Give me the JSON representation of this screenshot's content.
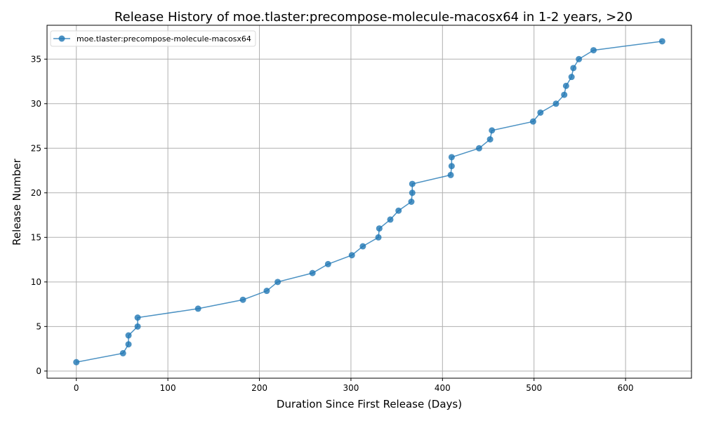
{
  "chart_data": {
    "type": "line",
    "title": "Release History of moe.tlaster:precompose-molecule-macosx64 in 1-2 years, >20",
    "xlabel": "Duration Since First Release (Days)",
    "ylabel": "Release Number",
    "xlim": [
      -32,
      672
    ],
    "ylim": [
      -0.8,
      38.8
    ],
    "xticks": [
      0,
      100,
      200,
      300,
      400,
      500,
      600
    ],
    "yticks": [
      0,
      5,
      10,
      15,
      20,
      25,
      30,
      35
    ],
    "grid": true,
    "legend_position": "top-left",
    "colors": {
      "series": "#1f77b4"
    },
    "series": [
      {
        "name": "moe.tlaster:precompose-molecule-macosx64",
        "marker": "circle",
        "x": [
          0,
          51,
          57,
          57,
          67,
          67,
          133,
          182,
          208,
          220,
          258,
          275,
          301,
          313,
          330,
          331,
          343,
          352,
          366,
          367,
          367,
          409,
          410,
          410,
          440,
          452,
          454,
          499,
          507,
          524,
          533,
          535,
          541,
          543,
          549,
          565,
          640
        ],
        "y": [
          1,
          2,
          3,
          4,
          5,
          6,
          7,
          8,
          9,
          10,
          11,
          12,
          13,
          14,
          15,
          16,
          17,
          18,
          19,
          20,
          21,
          22,
          23,
          24,
          25,
          26,
          27,
          28,
          29,
          30,
          31,
          32,
          33,
          34,
          35,
          36,
          37
        ]
      }
    ]
  }
}
